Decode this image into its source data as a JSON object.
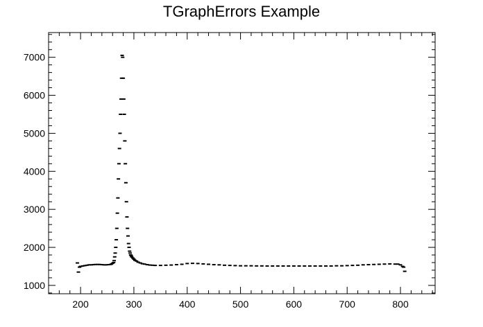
{
  "chart_data": {
    "type": "scatter",
    "title": "TGraphErrors Example",
    "xlabel": "",
    "ylabel": "",
    "xlim": [
      140,
      865
    ],
    "ylim": [
      780,
      7650
    ],
    "x_ticks": [
      200,
      300,
      400,
      500,
      600,
      700,
      800
    ],
    "y_ticks": [
      1000,
      2000,
      3000,
      4000,
      5000,
      6000,
      7000
    ],
    "grid": false,
    "marker": "horizontal-dash",
    "color": "#000000",
    "series": [
      {
        "values_x": [
          194,
          196,
          198,
          200,
          204,
          208,
          212,
          216,
          220,
          224,
          228,
          232,
          236,
          240,
          244,
          248,
          252,
          256,
          258,
          260,
          262,
          263,
          264,
          265,
          266,
          267,
          268,
          269,
          270,
          271,
          272,
          273,
          274,
          275,
          276,
          277,
          278,
          279,
          280,
          281,
          282,
          283,
          284,
          285,
          286,
          287,
          288,
          289,
          290,
          291,
          292,
          293,
          294,
          295,
          296,
          298,
          300,
          302,
          305,
          308,
          312,
          316,
          320,
          325,
          330,
          335,
          340,
          350,
          360,
          370,
          380,
          390,
          400,
          410,
          420,
          430,
          440,
          450,
          460,
          470,
          480,
          490,
          500,
          510,
          520,
          530,
          540,
          550,
          560,
          570,
          580,
          590,
          600,
          610,
          620,
          630,
          640,
          650,
          660,
          670,
          680,
          690,
          700,
          710,
          720,
          730,
          740,
          750,
          760,
          770,
          780,
          790,
          795,
          800,
          804,
          806,
          808
        ],
        "values_y": [
          1590,
          1350,
          1480,
          1500,
          1510,
          1520,
          1530,
          1540,
          1540,
          1545,
          1550,
          1550,
          1550,
          1545,
          1540,
          1540,
          1545,
          1550,
          1560,
          1580,
          1600,
          1650,
          1750,
          1850,
          2000,
          2200,
          2500,
          2900,
          3300,
          3800,
          4200,
          4600,
          5000,
          5500,
          5900,
          6450,
          7050,
          7000,
          6450,
          5900,
          5500,
          4800,
          4200,
          3700,
          3200,
          2800,
          2500,
          2300,
          2100,
          2000,
          1900,
          1850,
          1800,
          1780,
          1750,
          1720,
          1690,
          1660,
          1640,
          1610,
          1590,
          1570,
          1560,
          1545,
          1535,
          1530,
          1525,
          1525,
          1530,
          1535,
          1545,
          1555,
          1575,
          1580,
          1575,
          1565,
          1555,
          1545,
          1540,
          1530,
          1525,
          1520,
          1515,
          1515,
          1515,
          1512,
          1512,
          1510,
          1510,
          1510,
          1510,
          1510,
          1510,
          1510,
          1510,
          1510,
          1510,
          1510,
          1510,
          1510,
          1515,
          1515,
          1520,
          1525,
          1530,
          1540,
          1545,
          1550,
          1555,
          1560,
          1565,
          1560,
          1560,
          1540,
          1500,
          1480,
          1370
        ]
      }
    ]
  }
}
